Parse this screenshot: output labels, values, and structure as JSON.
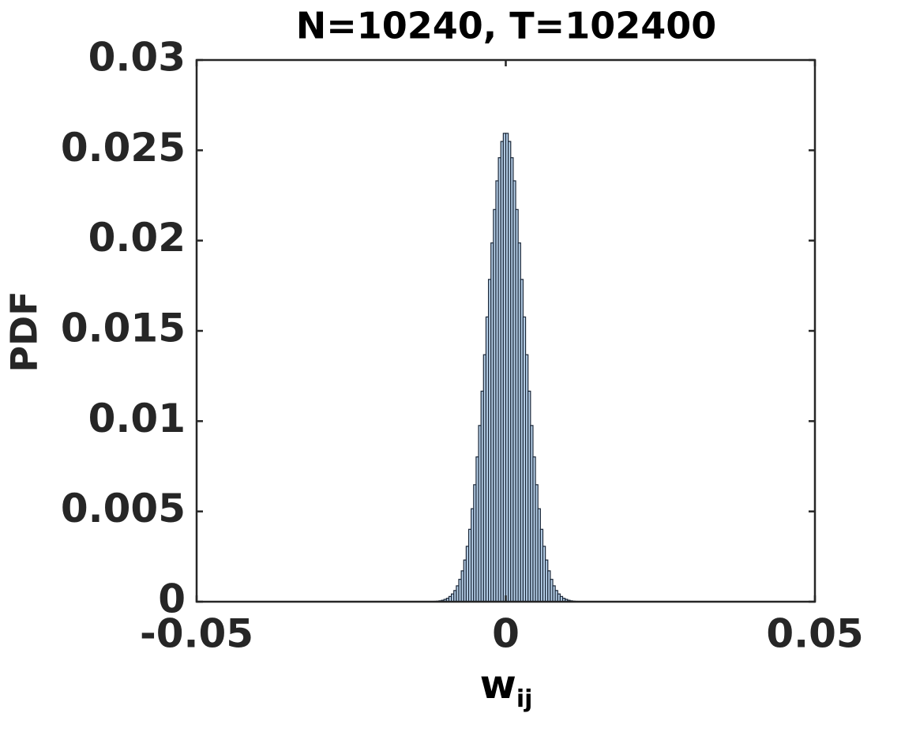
{
  "chart_data": {
    "type": "histogram",
    "title": "N=10240, T=102400",
    "xlabel": {
      "text": "w",
      "subscript": "ij"
    },
    "ylabel": "PDF",
    "bins": [
      -0.012,
      -0.0116,
      -0.0112,
      -0.0108,
      -0.0104,
      -0.01,
      -0.0096,
      -0.0092,
      -0.0088,
      -0.0084,
      -0.008,
      -0.0076,
      -0.0072,
      -0.0068,
      -0.0064,
      -0.006,
      -0.0056,
      -0.0052,
      -0.0048,
      -0.0044,
      -0.004,
      -0.0036,
      -0.0032,
      -0.0028,
      -0.0024,
      -0.002,
      -0.0016,
      -0.0012,
      -0.0008,
      -0.0004,
      0,
      0.0004,
      0.0008,
      0.0012,
      0.0016,
      0.002,
      0.0024,
      0.0028,
      0.0032,
      0.0036,
      0.004,
      0.0044,
      0.0048,
      0.0052,
      0.0056,
      0.006,
      0.0064,
      0.0068,
      0.0072,
      0.0076,
      0.008,
      0.0084,
      0.0088,
      0.0092,
      0.0096,
      0.01,
      0.0104,
      0.0108,
      0.0112,
      0.0116,
      0.012
    ],
    "values": [
      1e-05,
      2e-05,
      3e-05,
      5e-05,
      8e-05,
      0.00013,
      0.00019,
      0.00029,
      0.00043,
      0.00062,
      0.00088,
      0.00124,
      0.00171,
      0.00231,
      0.00307,
      0.00401,
      0.00515,
      0.00648,
      0.00802,
      0.00976,
      0.01166,
      0.01368,
      0.01577,
      0.01785,
      0.01987,
      0.02172,
      0.02331,
      0.02459,
      0.02549,
      0.02594,
      0.02594,
      0.02549,
      0.02459,
      0.02331,
      0.02172,
      0.01987,
      0.01785,
      0.01577,
      0.01368,
      0.01166,
      0.00976,
      0.00802,
      0.00648,
      0.00515,
      0.00401,
      0.00307,
      0.00231,
      0.00171,
      0.00124,
      0.00088,
      0.00062,
      0.00043,
      0.00029,
      0.00019,
      0.00013,
      8e-05,
      5e-05,
      3e-05,
      2e-05,
      1e-05
    ],
    "color": "#b9d3ec",
    "edgecolor": "#1b2738",
    "xlim": [
      -0.05,
      0.05
    ],
    "xticks": [
      -0.05,
      0,
      0.05
    ],
    "ylim": [
      0,
      0.03
    ],
    "yticks": [
      0,
      0.005,
      0.01,
      0.015,
      0.02,
      0.025,
      0.03
    ]
  }
}
